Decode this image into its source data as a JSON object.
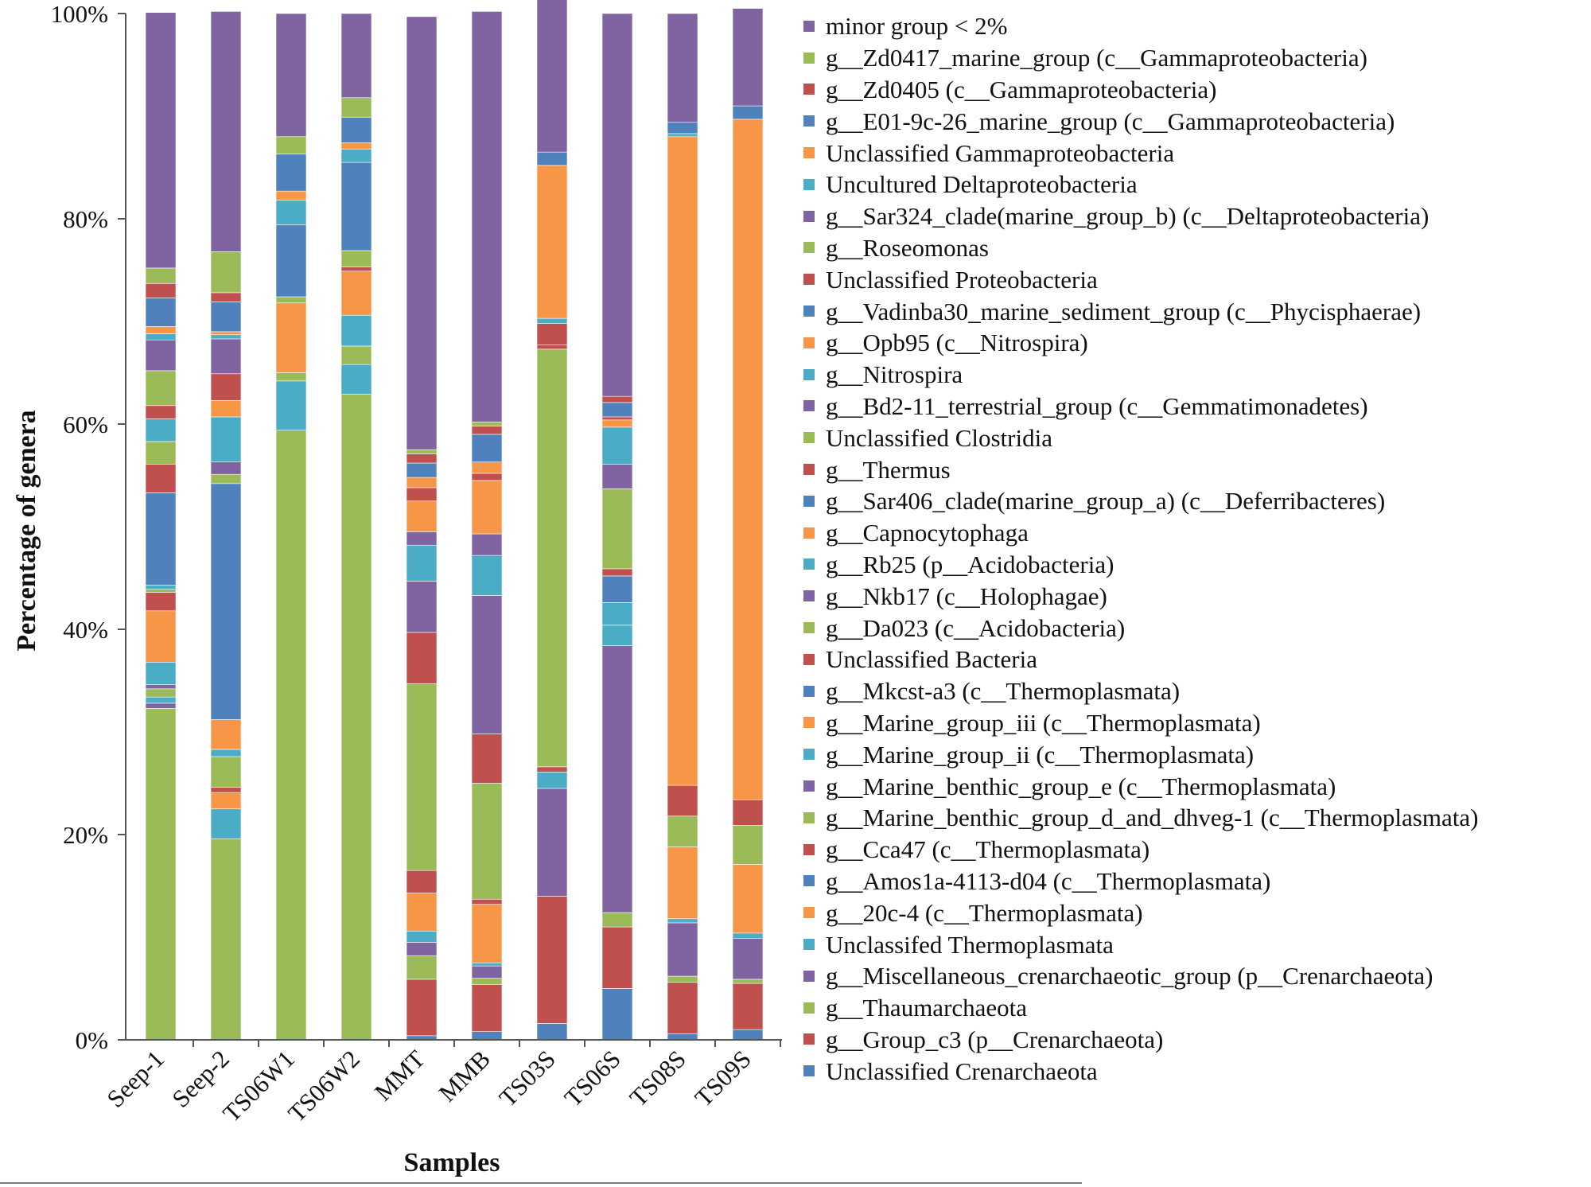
{
  "chart_data": {
    "type": "stacked-bar",
    "orientation": "vertical",
    "ylabel": "Percentage of genera",
    "xlabel": "Samples",
    "ylim": [
      0,
      100
    ],
    "yticks": [
      "0%",
      "20%",
      "40%",
      "60%",
      "80%",
      "100%"
    ],
    "categories": [
      "Seep-1",
      "Seep-2",
      "TS06W1",
      "TS06W2",
      "MMT",
      "MMB",
      "TS03S",
      "TS06S",
      "TS08S",
      "TS09S"
    ],
    "legend_position": "right",
    "series": [
      {
        "name": "Unclassified Crenarchaeota",
        "color": "#4f81bd",
        "values": [
          0,
          0,
          0,
          0,
          0.4,
          0.8,
          1.6,
          5.0,
          0.6,
          1.0
        ]
      },
      {
        "name": "g__Group_c3 (p__Crenarchaeota)",
        "color": "#c0504d",
        "values": [
          0,
          0,
          0,
          0,
          5.5,
          4.6,
          12.4,
          6.0,
          5.0,
          4.5
        ]
      },
      {
        "name": "g__Thaumarchaeota",
        "color": "#9bbb59",
        "values": [
          32.3,
          19.6,
          59.4,
          62.9,
          2.3,
          0.6,
          0.0,
          1.4,
          0.6,
          0.4
        ]
      },
      {
        "name": "g__Miscellaneous_crenarchaeotic_group (p__Crenarchaeota)",
        "color": "#8064a2",
        "values": [
          0.5,
          0,
          0,
          0,
          1.3,
          1.2,
          10.5,
          26.0,
          5.2,
          4.0
        ]
      },
      {
        "name": "Unclassifed Thermoplasmata",
        "color": "#4bacc6",
        "values": [
          0.6,
          2.9,
          4.8,
          2.9,
          1.1,
          0.3,
          1.6,
          2.0,
          0.4,
          0.5
        ]
      },
      {
        "name": "g__20c-4 (c__Thermoplasmata)",
        "color": "#f79646",
        "values": [
          0,
          1.6,
          0,
          0,
          3.7,
          5.7,
          0,
          0,
          7.0,
          6.7
        ]
      },
      {
        "name": "g__Amos1a-4113-d04 (c__Thermoplasmata)",
        "color": "#4f81bd",
        "values": [
          0,
          0,
          0,
          0,
          0,
          0,
          0,
          0,
          0,
          0
        ]
      },
      {
        "name": "g__Cca47 (c__Thermoplasmata)",
        "color": "#c0504d",
        "values": [
          0,
          0.5,
          0,
          0,
          2.2,
          0.5,
          0.5,
          0,
          0,
          0
        ]
      },
      {
        "name": "g__Marine_benthic_group_d_and_dhveg-1 (c__Thermoplasmata)",
        "color": "#9bbb59",
        "values": [
          0.8,
          3.0,
          0.8,
          1.8,
          18.2,
          11.3,
          40.7,
          0,
          3.0,
          3.8
        ]
      },
      {
        "name": "g__Marine_benthic_group_e (c__Thermoplasmata)",
        "color": "#8064a2",
        "values": [
          0.4,
          0,
          0,
          0,
          0,
          0,
          0,
          0,
          0,
          0
        ]
      },
      {
        "name": "g__Marine_group_ii (c__Thermoplasmata)",
        "color": "#4bacc6",
        "values": [
          2.2,
          0.7,
          0,
          3.0,
          0,
          0,
          0,
          0,
          0,
          0
        ]
      },
      {
        "name": "g__Marine_group_iii (c__Thermoplasmata)",
        "color": "#f79646",
        "values": [
          5.0,
          2.9,
          6.8,
          4.3,
          0,
          0,
          0,
          0,
          0,
          0
        ]
      },
      {
        "name": "g__Mkcst-a3 (c__Thermoplasmata)",
        "color": "#4f81bd",
        "values": [
          0,
          0,
          0,
          0,
          0,
          0,
          0,
          0,
          0,
          0
        ]
      },
      {
        "name": "Unclassified Bacteria",
        "color": "#c0504d",
        "values": [
          1.8,
          0,
          0,
          0.4,
          5.0,
          4.8,
          0.4,
          0,
          3.0,
          2.5
        ]
      },
      {
        "name": "g__Da023 (c__Acidobacteria)",
        "color": "#9bbb59",
        "values": [
          0.3,
          0,
          0.6,
          1.6,
          0,
          0,
          0,
          0,
          0,
          0
        ]
      },
      {
        "name": "g__Nkb17 (c__Holophagae)",
        "color": "#8064a2",
        "values": [
          0,
          0,
          0,
          0,
          5.0,
          13.5,
          0,
          0,
          0,
          0
        ]
      },
      {
        "name": "g__Rb25 (p__Acidobacteria)",
        "color": "#4bacc6",
        "values": [
          0.4,
          0,
          0,
          0,
          3.5,
          3.9,
          0,
          2.2,
          0,
          0
        ]
      },
      {
        "name": "g__Capnocytophaga",
        "color": "#f79646",
        "values": [
          0,
          0,
          0,
          0,
          0,
          0,
          0,
          0,
          0,
          0
        ]
      },
      {
        "name": "g__Sar406_clade(marine_group_a) (c__Deferribacteres)",
        "color": "#4f81bd",
        "values": [
          9.0,
          23.0,
          7.0,
          8.6,
          0,
          0,
          0,
          2.6,
          0,
          0
        ]
      },
      {
        "name": "g__Thermus",
        "color": "#c0504d",
        "values": [
          2.8,
          0,
          0,
          0,
          0,
          0,
          0,
          0.7,
          0,
          0
        ]
      },
      {
        "name": "Unclassified Clostridia",
        "color": "#9bbb59",
        "values": [
          2.2,
          0.9,
          0,
          0,
          0,
          0,
          0,
          7.8,
          0,
          0
        ]
      },
      {
        "name": "g__Bd2-11_terrestrial_group (c__Gemmatimonadetes)",
        "color": "#8064a2",
        "values": [
          0,
          1.2,
          0,
          0,
          1.3,
          2.1,
          0,
          2.4,
          0,
          0
        ]
      },
      {
        "name": "g__Nitrospira",
        "color": "#4bacc6",
        "values": [
          2.2,
          4.4,
          0,
          0,
          0,
          0,
          0,
          3.6,
          0,
          0
        ]
      },
      {
        "name": "g__Opb95 (c__Nitrospira)",
        "color": "#f79646",
        "values": [
          0,
          1.6,
          0,
          0,
          3.0,
          5.2,
          0,
          0.7,
          63.2,
          66.3
        ]
      },
      {
        "name": "g__Vadinba30_marine_sediment_group (c__Phycisphaerae)",
        "color": "#4f81bd",
        "values": [
          0,
          0,
          0,
          0,
          0,
          0,
          0,
          0,
          0,
          0
        ]
      },
      {
        "name": "Unclassified Proteobacteria",
        "color": "#c0504d",
        "values": [
          1.3,
          2.6,
          0,
          0,
          1.3,
          0.7,
          2.1,
          0.3,
          0,
          0
        ]
      },
      {
        "name": "g__Roseomonas",
        "color": "#9bbb59",
        "values": [
          3.4,
          0,
          0,
          0,
          0,
          0,
          0,
          0,
          0,
          0
        ]
      },
      {
        "name": "g__Sar324_clade(marine_group_b) (c__Deltaproteobacteria)",
        "color": "#8064a2",
        "values": [
          3.0,
          3.4,
          0,
          0,
          0,
          0,
          0,
          0,
          0,
          0
        ]
      },
      {
        "name": "Uncultured Deltaproteobacteria",
        "color": "#4bacc6",
        "values": [
          0.6,
          0.4,
          2.4,
          1.3,
          0,
          0,
          0.5,
          0,
          0.3,
          0
        ]
      },
      {
        "name": "Unclassified Gammaproteobacteria",
        "color": "#f79646",
        "values": [
          0.7,
          0.3,
          0.9,
          0.6,
          1.0,
          1.1,
          14.9,
          0,
          0,
          0
        ]
      },
      {
        "name": "g__E01-9c-26_marine_group (c__Gammaproteobacteria)",
        "color": "#4f81bd",
        "values": [
          2.8,
          2.9,
          3.6,
          2.5,
          1.4,
          2.7,
          1.3,
          1.4,
          1.1,
          1.3
        ]
      },
      {
        "name": "g__Zd0405 (c__Gammaproteobacteria)",
        "color": "#c0504d",
        "values": [
          1.4,
          0.9,
          0,
          0,
          0.9,
          0.8,
          0,
          0.6,
          0,
          0
        ]
      },
      {
        "name": "g__Zd0417_marine_group (c__Gammaproteobacteria)",
        "color": "#9bbb59",
        "values": [
          1.5,
          4.0,
          1.7,
          1.9,
          0.4,
          0.4,
          0,
          0,
          0,
          0
        ]
      },
      {
        "name": "minor group < 2%",
        "color": "#8064a2",
        "values": [
          24.9,
          23.4,
          12.0,
          8.2,
          42.2,
          40.0,
          15.4,
          37.3,
          10.6,
          9.5
        ]
      }
    ]
  }
}
